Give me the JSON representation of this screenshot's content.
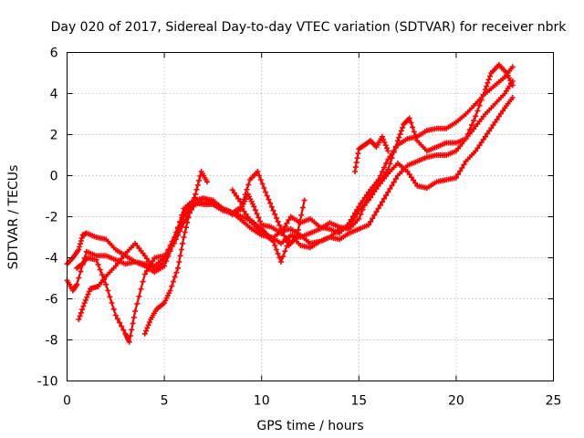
{
  "chart_data": {
    "type": "scatter",
    "title": "Day 020 of 2017, Sidereal Day-to-day VTEC variation (SDTVAR) for receiver nbrk",
    "xlabel": "GPS time / hours",
    "ylabel": "SDTVAR / TECUs",
    "xlim": [
      0,
      25
    ],
    "ylim": [
      -10,
      6
    ],
    "x_ticks": [
      "0",
      "5",
      "10",
      "15",
      "20",
      "25"
    ],
    "y_ticks": [
      "-10",
      "-8",
      "-6",
      "-4",
      "-2",
      "0",
      "2",
      "4",
      "6"
    ],
    "grid": true,
    "marker": "+",
    "color": "#ff0000",
    "series": [
      {
        "x": [
          0.0,
          0.3,
          0.6,
          0.8,
          1.0,
          1.5,
          2.0,
          2.5,
          3.0,
          3.5,
          4.0,
          4.5,
          5.0,
          5.5,
          6.0,
          6.5,
          7.0,
          7.5,
          8.0,
          8.5,
          9.0,
          9.5,
          10.0,
          10.5,
          11.0,
          11.5,
          12.0,
          12.5,
          13.0,
          13.5,
          14.0,
          14.5,
          15.0,
          15.5,
          16.0,
          16.5,
          17.0,
          17.5,
          18.0,
          18.5,
          19.0,
          19.5,
          20.0,
          20.5,
          21.0,
          21.5,
          22.0,
          22.5,
          22.9
        ],
        "y": [
          -4.3,
          -4.0,
          -3.6,
          -2.9,
          -2.8,
          -3.0,
          -3.1,
          -3.6,
          -3.9,
          -4.2,
          -4.4,
          -4.7,
          -4.4,
          -3.2,
          -1.6,
          -1.2,
          -1.1,
          -1.3,
          -1.6,
          -1.9,
          -1.6,
          -2.3,
          -2.8,
          -3.1,
          -2.7,
          -2.6,
          -2.9,
          -3.3,
          -3.2,
          -3.0,
          -2.6,
          -2.5,
          -1.7,
          -1.2,
          -0.5,
          0.1,
          0.6,
          0.2,
          -0.5,
          -0.6,
          -0.3,
          -0.2,
          -0.1,
          0.7,
          1.2,
          1.9,
          2.6,
          3.3,
          3.8
        ]
      },
      {
        "x": [
          0.0,
          0.3,
          0.5,
          1.0,
          1.5,
          2.0,
          2.5,
          3.0,
          3.5,
          4.0,
          4.5,
          5.0,
          5.5,
          6.0,
          6.5,
          7.0,
          7.5,
          8.0,
          8.5,
          9.0,
          9.3,
          9.6,
          10.0,
          10.5,
          11.0,
          11.5,
          12.0,
          12.5,
          13.0,
          13.5,
          14.0,
          14.5,
          15.0,
          15.5,
          16.0,
          16.5,
          17.0,
          17.5,
          18.0,
          18.5,
          19.0,
          19.5,
          20.0,
          20.5,
          21.0,
          21.5,
          22.0,
          22.5,
          22.9
        ],
        "y": [
          -5.1,
          -5.6,
          -5.3,
          -3.7,
          -3.9,
          -3.9,
          -4.1,
          -4.3,
          -4.2,
          -4.3,
          -4.4,
          -4.0,
          -3.0,
          -1.8,
          -1.3,
          -1.4,
          -1.4,
          -1.7,
          -1.8,
          -1.5,
          -0.9,
          -1.5,
          -2.4,
          -2.5,
          -2.8,
          -2.0,
          -2.3,
          -2.1,
          -2.5,
          -2.6,
          -2.8,
          -2.3,
          -1.5,
          -0.8,
          -0.2,
          0.8,
          1.5,
          1.8,
          1.9,
          2.2,
          2.3,
          2.3,
          2.6,
          3.0,
          3.5,
          4.0,
          4.4,
          4.8,
          5.3
        ]
      },
      {
        "x": [
          0.6,
          0.9,
          1.2,
          1.6,
          2.0,
          2.5,
          3.0,
          3.5,
          4.0,
          4.5,
          5.0,
          5.5,
          6.0,
          6.5,
          7.0,
          7.5,
          8.0,
          8.5,
          9.0,
          9.5,
          10.0,
          10.5,
          11.0,
          11.5,
          12.0,
          12.5,
          13.0,
          13.5,
          14.0,
          14.5,
          15.0,
          15.5,
          16.0,
          16.5,
          17.0,
          17.3,
          17.6,
          18.0,
          18.5,
          19.0,
          19.5,
          20.0,
          20.5,
          21.0,
          21.5,
          22.0,
          22.5,
          22.9
        ],
        "y": [
          -7.0,
          -6.2,
          -5.5,
          -5.4,
          -4.9,
          -4.4,
          -3.8,
          -3.3,
          -3.9,
          -4.6,
          -4.2,
          -3.2,
          -2.0,
          -1.4,
          -1.3,
          -1.4,
          -1.6,
          -1.8,
          -2.2,
          -2.6,
          -2.9,
          -3.0,
          -3.3,
          -2.9,
          -3.0,
          -2.8,
          -2.6,
          -2.3,
          -2.5,
          -2.6,
          -2.1,
          -1.0,
          -0.4,
          0.3,
          1.7,
          2.5,
          2.8,
          1.7,
          1.2,
          1.4,
          1.6,
          1.6,
          1.8,
          2.4,
          3.0,
          3.5,
          4.0,
          4.6
        ]
      },
      {
        "x": [
          0.5,
          0.8,
          1.0,
          1.5,
          2.0,
          2.5,
          3.0,
          3.2,
          3.5,
          4.0,
          4.5,
          5.0,
          5.5,
          6.0,
          6.5,
          7.0,
          7.5,
          8.0,
          8.5,
          9.0,
          9.5,
          10.0,
          10.3,
          10.6,
          11.0,
          11.5,
          12.0,
          12.5,
          13.0,
          13.5,
          14.0,
          14.5,
          15.0,
          15.5,
          16.0,
          16.5,
          17.0,
          17.5,
          18.0,
          18.5,
          19.0,
          19.5,
          20.0,
          20.5,
          21.0,
          21.5,
          21.8,
          22.2,
          22.6,
          22.9
        ],
        "y": [
          -4.5,
          -4.3,
          -4.0,
          -4.1,
          -5.3,
          -6.8,
          -7.7,
          -8.1,
          -6.6,
          -4.8,
          -4.0,
          -3.9,
          -3.3,
          -2.3,
          -1.5,
          -1.1,
          -1.2,
          -1.6,
          -1.8,
          -2.0,
          -2.2,
          -2.6,
          -2.9,
          -3.2,
          -4.2,
          -2.9,
          -3.4,
          -3.5,
          -3.2,
          -3.0,
          -3.1,
          -2.8,
          -2.6,
          -2.4,
          -1.6,
          -0.8,
          0.0,
          0.5,
          0.7,
          0.9,
          1.0,
          1.0,
          1.2,
          1.8,
          2.9,
          4.2,
          5.0,
          5.4,
          5.0,
          4.4
        ]
      },
      {
        "x": [
          4.0,
          4.3,
          4.6,
          5.0,
          5.3,
          5.7,
          6.0,
          6.3,
          6.6,
          6.9,
          7.2
        ],
        "y": [
          -7.7,
          -7.0,
          -6.5,
          -6.2,
          -5.6,
          -4.5,
          -3.0,
          -1.8,
          -0.9,
          0.2,
          -0.3
        ]
      },
      {
        "x": [
          8.5,
          9.0,
          9.4,
          9.8,
          10.2,
          10.6,
          11.0,
          11.4,
          11.8,
          12.2
        ],
        "y": [
          -0.7,
          -1.4,
          -0.2,
          0.2,
          -0.8,
          -1.7,
          -2.6,
          -3.4,
          -3.0,
          -1.2
        ]
      },
      {
        "x": [
          14.8,
          15.0,
          15.3,
          15.6,
          15.9,
          16.2,
          16.5
        ],
        "y": [
          0.2,
          1.3,
          1.5,
          1.7,
          1.4,
          1.9,
          1.2
        ]
      }
    ]
  }
}
